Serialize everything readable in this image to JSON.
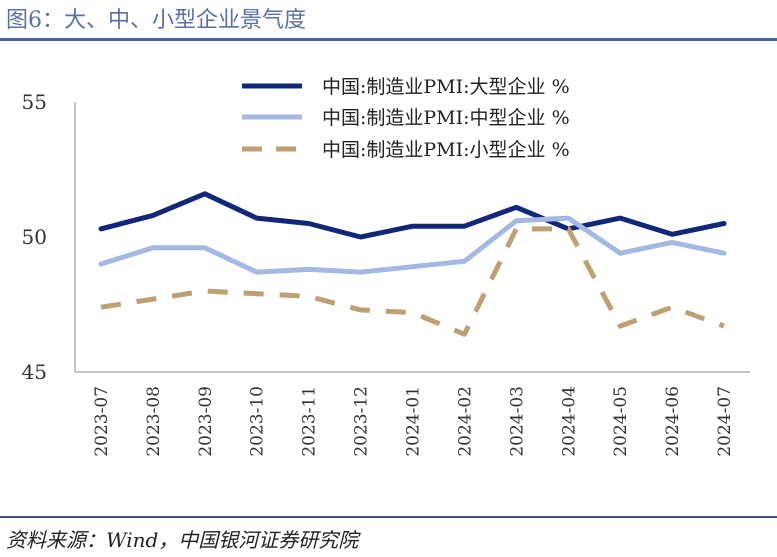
{
  "title": "图6：大、中、小型企业景气度",
  "source": "资料来源：Wind，中国银河证券研究院",
  "chart_data": {
    "type": "line",
    "categories": [
      "2023-07",
      "2023-08",
      "2023-09",
      "2023-10",
      "2023-11",
      "2023-12",
      "2024-01",
      "2024-02",
      "2024-03",
      "2024-04",
      "2024-05",
      "2024-06",
      "2024-07"
    ],
    "ylim": [
      45,
      55
    ],
    "yticks": [
      "45",
      "50",
      "55"
    ],
    "grid": false,
    "legend_position": "top-center",
    "series": [
      {
        "name": "中国:制造业PMI:大型企业 %",
        "color": "#10277a",
        "style": "solid",
        "values": [
          50.3,
          50.8,
          51.6,
          50.7,
          50.5,
          50.0,
          50.4,
          50.4,
          51.1,
          50.3,
          50.7,
          50.1,
          50.5
        ]
      },
      {
        "name": "中国:制造业PMI:中型企业 %",
        "color": "#a3b8e2",
        "style": "solid",
        "values": [
          49.0,
          49.6,
          49.6,
          48.7,
          48.8,
          48.7,
          48.9,
          49.1,
          50.6,
          50.7,
          49.4,
          49.8,
          49.4
        ]
      },
      {
        "name": "中国:制造业PMI:小型企业 %",
        "color": "#bfa074",
        "style": "dashed",
        "values": [
          47.4,
          47.7,
          48.0,
          47.9,
          47.8,
          47.3,
          47.2,
          46.4,
          50.3,
          50.3,
          46.7,
          47.4,
          46.7
        ]
      }
    ]
  }
}
